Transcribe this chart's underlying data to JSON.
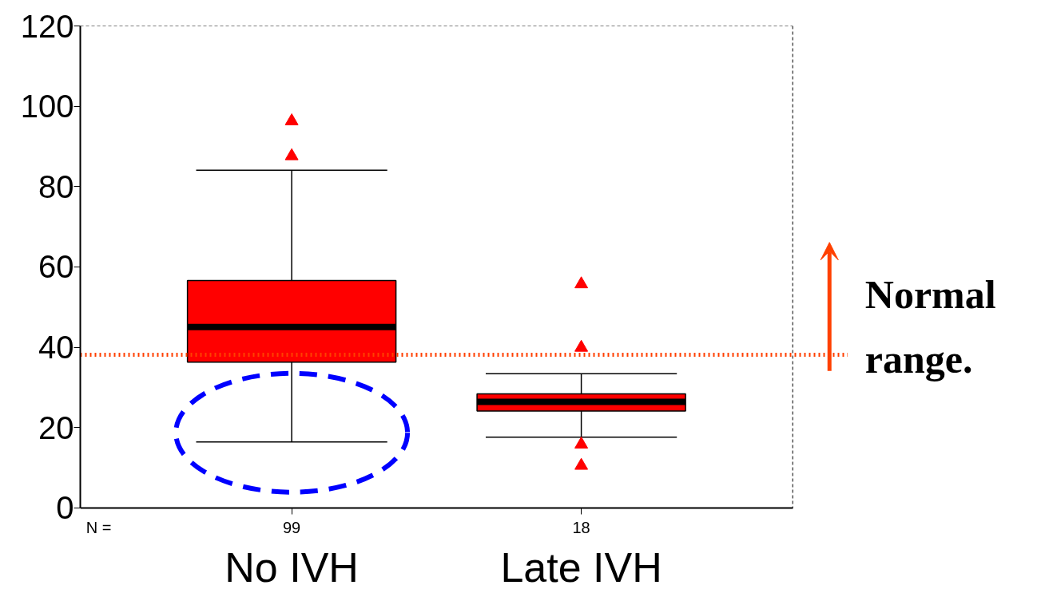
{
  "chart_data": {
    "type": "box",
    "categories": [
      "No IVH",
      "Late IVH"
    ],
    "series": [
      {
        "color": "#ff0000",
        "boxes": [
          {
            "low": 16.4,
            "q1": 36.3,
            "median": 45,
            "q3": 56.6,
            "high": 84.1,
            "outliers": [
              96.3,
              87.6
            ]
          },
          {
            "low": 17.6,
            "q1": 24.1,
            "median": 26.4,
            "q3": 28.4,
            "high": 33.4,
            "outliers": [
              55.7,
              39.9,
              15.8,
              10.5
            ]
          }
        ]
      }
    ],
    "ylim": [
      0,
      120
    ],
    "yticks": [
      0,
      20,
      40,
      60,
      80,
      100,
      120
    ],
    "grid": false,
    "marker": "triangle",
    "ref_lines": [
      {
        "axis": "y",
        "value": 38.1,
        "label": "Normal range.",
        "color": "#ff4000",
        "line_style": "dotted"
      }
    ],
    "annotations": [
      "N =",
      "99",
      "18"
    ]
  }
}
